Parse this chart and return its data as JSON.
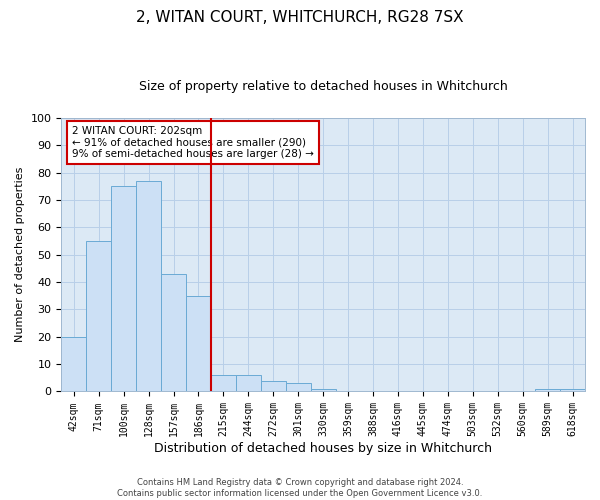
{
  "title": "2, WITAN COURT, WHITCHURCH, RG28 7SX",
  "subtitle": "Size of property relative to detached houses in Whitchurch",
  "xlabel": "Distribution of detached houses by size in Whitchurch",
  "ylabel": "Number of detached properties",
  "bar_labels": [
    "42sqm",
    "71sqm",
    "100sqm",
    "128sqm",
    "157sqm",
    "186sqm",
    "215sqm",
    "244sqm",
    "272sqm",
    "301sqm",
    "330sqm",
    "359sqm",
    "388sqm",
    "416sqm",
    "445sqm",
    "474sqm",
    "503sqm",
    "532sqm",
    "560sqm",
    "589sqm",
    "618sqm"
  ],
  "bar_values": [
    20,
    55,
    75,
    77,
    43,
    35,
    6,
    6,
    4,
    3,
    1,
    0,
    0,
    0,
    0,
    0,
    0,
    0,
    0,
    1,
    1
  ],
  "bar_color": "#cce0f5",
  "bar_edge_color": "#6aaad4",
  "vline_x": 6.0,
  "annotation_text": "2 WITAN COURT: 202sqm\n← 91% of detached houses are smaller (290)\n9% of semi-detached houses are larger (28) →",
  "annotation_box_color": "#ffffff",
  "annotation_box_edge": "#cc0000",
  "vline_color": "#cc0000",
  "ylim": [
    0,
    100
  ],
  "yticks": [
    0,
    10,
    20,
    30,
    40,
    50,
    60,
    70,
    80,
    90,
    100
  ],
  "grid_color": "#b8cfe8",
  "bg_color": "#dce9f5",
  "footer_text": "Contains HM Land Registry data © Crown copyright and database right 2024.\nContains public sector information licensed under the Open Government Licence v3.0.",
  "title_fontsize": 11,
  "subtitle_fontsize": 9,
  "xlabel_fontsize": 9,
  "ylabel_fontsize": 8
}
